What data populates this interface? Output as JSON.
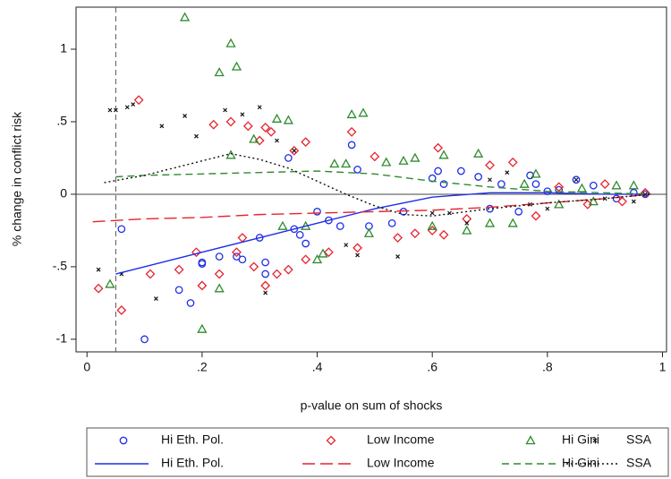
{
  "chart_data": {
    "type": "scatter",
    "ylabel": "% change in conflict risk",
    "xlabel": "p-value on sum of shocks",
    "xlim": [
      -0.019,
      1.007
    ],
    "ylim": [
      -1.087,
      1.29
    ],
    "xticks": [
      0,
      {
        "value": 0.2,
        "label": ".2"
      },
      {
        "value": 0.4,
        "label": ".4"
      },
      {
        "value": 0.6,
        "label": ".6"
      },
      {
        "value": 0.8,
        "label": ".8"
      },
      1
    ],
    "yticks": [
      -1,
      {
        "value": -0.5,
        "label": "-.5"
      },
      0,
      {
        "value": 0.5,
        "label": ".5"
      },
      1
    ],
    "vline": 0.05,
    "hline": 0,
    "series": [
      {
        "name": "Hi Eth. Pol.",
        "kind": "scatter",
        "marker": "circle",
        "color": "#1f2ee8",
        "x": [
          0.06,
          0.1,
          0.16,
          0.18,
          0.2,
          0.2,
          0.23,
          0.26,
          0.27,
          0.3,
          0.31,
          0.31,
          0.35,
          0.36,
          0.37,
          0.38,
          0.4,
          0.42,
          0.44,
          0.46,
          0.47,
          0.49,
          0.53,
          0.55,
          0.6,
          0.61,
          0.62,
          0.65,
          0.68,
          0.7,
          0.72,
          0.75,
          0.77,
          0.78,
          0.8,
          0.82,
          0.85,
          0.88,
          0.92,
          0.95,
          0.97
        ],
        "values": [
          -0.24,
          -1.0,
          -0.66,
          -0.75,
          -0.48,
          -0.47,
          -0.43,
          -0.43,
          -0.45,
          -0.3,
          -0.55,
          -0.47,
          0.25,
          -0.24,
          -0.28,
          -0.34,
          -0.12,
          -0.18,
          -0.22,
          0.34,
          0.17,
          -0.22,
          -0.2,
          -0.12,
          0.11,
          0.16,
          0.07,
          0.16,
          0.12,
          -0.1,
          0.07,
          -0.12,
          0.13,
          0.07,
          0.02,
          0.03,
          0.1,
          0.06,
          -0.03,
          0.01,
          0.0
        ]
      },
      {
        "name": "Low Income",
        "kind": "scatter",
        "marker": "diamond",
        "color": "#e8222e",
        "x": [
          0.02,
          0.06,
          0.09,
          0.11,
          0.16,
          0.19,
          0.2,
          0.22,
          0.23,
          0.25,
          0.26,
          0.27,
          0.28,
          0.29,
          0.3,
          0.31,
          0.31,
          0.32,
          0.33,
          0.35,
          0.36,
          0.38,
          0.38,
          0.42,
          0.46,
          0.47,
          0.5,
          0.54,
          0.57,
          0.6,
          0.61,
          0.62,
          0.66,
          0.7,
          0.74,
          0.78,
          0.82,
          0.87,
          0.9,
          0.93,
          0.97
        ],
        "values": [
          -0.65,
          -0.8,
          0.65,
          -0.55,
          -0.52,
          -0.4,
          -0.63,
          0.48,
          -0.55,
          0.5,
          -0.4,
          -0.3,
          0.47,
          -0.5,
          0.37,
          0.46,
          -0.63,
          0.43,
          -0.55,
          -0.52,
          0.3,
          -0.45,
          0.36,
          -0.4,
          0.43,
          -0.37,
          0.26,
          -0.3,
          -0.27,
          -0.25,
          0.32,
          -0.28,
          -0.17,
          0.2,
          0.22,
          -0.15,
          0.05,
          -0.07,
          0.07,
          -0.05,
          0.01
        ]
      },
      {
        "name": "Hi Gini",
        "kind": "scatter",
        "marker": "triangle",
        "color": "#2e8b2e",
        "x": [
          0.04,
          0.17,
          0.2,
          0.23,
          0.25,
          0.26,
          0.25,
          0.29,
          0.33,
          0.35,
          0.34,
          0.38,
          0.4,
          0.41,
          0.43,
          0.45,
          0.46,
          0.48,
          0.49,
          0.52,
          0.55,
          0.57,
          0.6,
          0.62,
          0.66,
          0.68,
          0.7,
          0.74,
          0.76,
          0.78,
          0.82,
          0.86,
          0.88,
          0.92,
          0.95,
          0.23
        ],
        "values": [
          -0.62,
          1.22,
          -0.93,
          0.84,
          1.04,
          0.88,
          0.27,
          0.38,
          0.52,
          0.51,
          -0.22,
          -0.22,
          -0.45,
          -0.41,
          0.21,
          0.21,
          0.55,
          0.56,
          -0.27,
          0.22,
          0.23,
          0.25,
          -0.22,
          0.27,
          -0.25,
          0.28,
          -0.2,
          -0.2,
          0.07,
          0.14,
          -0.07,
          0.04,
          -0.05,
          0.06,
          0.06,
          -0.65
        ]
      },
      {
        "name": "SSA",
        "kind": "scatter",
        "marker": "x",
        "color": "#111111",
        "x": [
          0.02,
          0.04,
          0.05,
          0.06,
          0.07,
          0.08,
          0.12,
          0.13,
          0.17,
          0.19,
          0.24,
          0.27,
          0.3,
          0.31,
          0.33,
          0.36,
          0.45,
          0.47,
          0.54,
          0.6,
          0.63,
          0.66,
          0.7,
          0.73,
          0.77,
          0.8,
          0.85,
          0.9,
          0.95,
          0.97
        ],
        "values": [
          -0.52,
          0.58,
          0.58,
          -0.55,
          0.6,
          0.62,
          -0.72,
          0.47,
          0.54,
          0.4,
          0.58,
          0.55,
          0.6,
          -0.68,
          0.37,
          0.3,
          -0.35,
          -0.42,
          -0.43,
          -0.13,
          -0.13,
          -0.2,
          0.1,
          0.15,
          -0.07,
          -0.1,
          0.1,
          -0.03,
          -0.05,
          0.0
        ]
      },
      {
        "name": "Hi Eth. Pol.",
        "kind": "line",
        "dash": "solid",
        "color": "#1f2ee8",
        "x": [
          0.05,
          0.1,
          0.2,
          0.3,
          0.4,
          0.5,
          0.6,
          0.7,
          0.8,
          0.9,
          0.98
        ],
        "values": [
          -0.55,
          -0.5,
          -0.4,
          -0.3,
          -0.2,
          -0.1,
          -0.02,
          0.01,
          0.01,
          0.0,
          0.0
        ]
      },
      {
        "name": "Low Income",
        "kind": "line",
        "dash": "longdash",
        "color": "#e8222e",
        "x": [
          0.01,
          0.1,
          0.2,
          0.3,
          0.4,
          0.5,
          0.6,
          0.7,
          0.8,
          0.9,
          0.98
        ],
        "values": [
          -0.19,
          -0.17,
          -0.16,
          -0.14,
          -0.13,
          -0.12,
          -0.11,
          -0.09,
          -0.06,
          -0.03,
          0.0
        ]
      },
      {
        "name": "Hi Gini",
        "kind": "line",
        "dash": "dash",
        "color": "#2e8b2e",
        "x": [
          0.05,
          0.1,
          0.2,
          0.3,
          0.4,
          0.5,
          0.6,
          0.7,
          0.8,
          0.9,
          0.98
        ],
        "values": [
          0.12,
          0.13,
          0.14,
          0.15,
          0.16,
          0.14,
          0.09,
          0.05,
          0.02,
          0.01,
          0.0
        ]
      },
      {
        "name": "SSA",
        "kind": "line",
        "dash": "dot",
        "color": "#111111",
        "x": [
          0.03,
          0.1,
          0.2,
          0.25,
          0.3,
          0.35,
          0.4,
          0.45,
          0.5,
          0.55,
          0.6,
          0.7,
          0.8,
          0.9,
          0.98
        ],
        "values": [
          0.08,
          0.13,
          0.23,
          0.28,
          0.24,
          0.18,
          0.09,
          0.0,
          -0.08,
          -0.14,
          -0.15,
          -0.1,
          -0.06,
          -0.03,
          0.0
        ]
      }
    ]
  }
}
